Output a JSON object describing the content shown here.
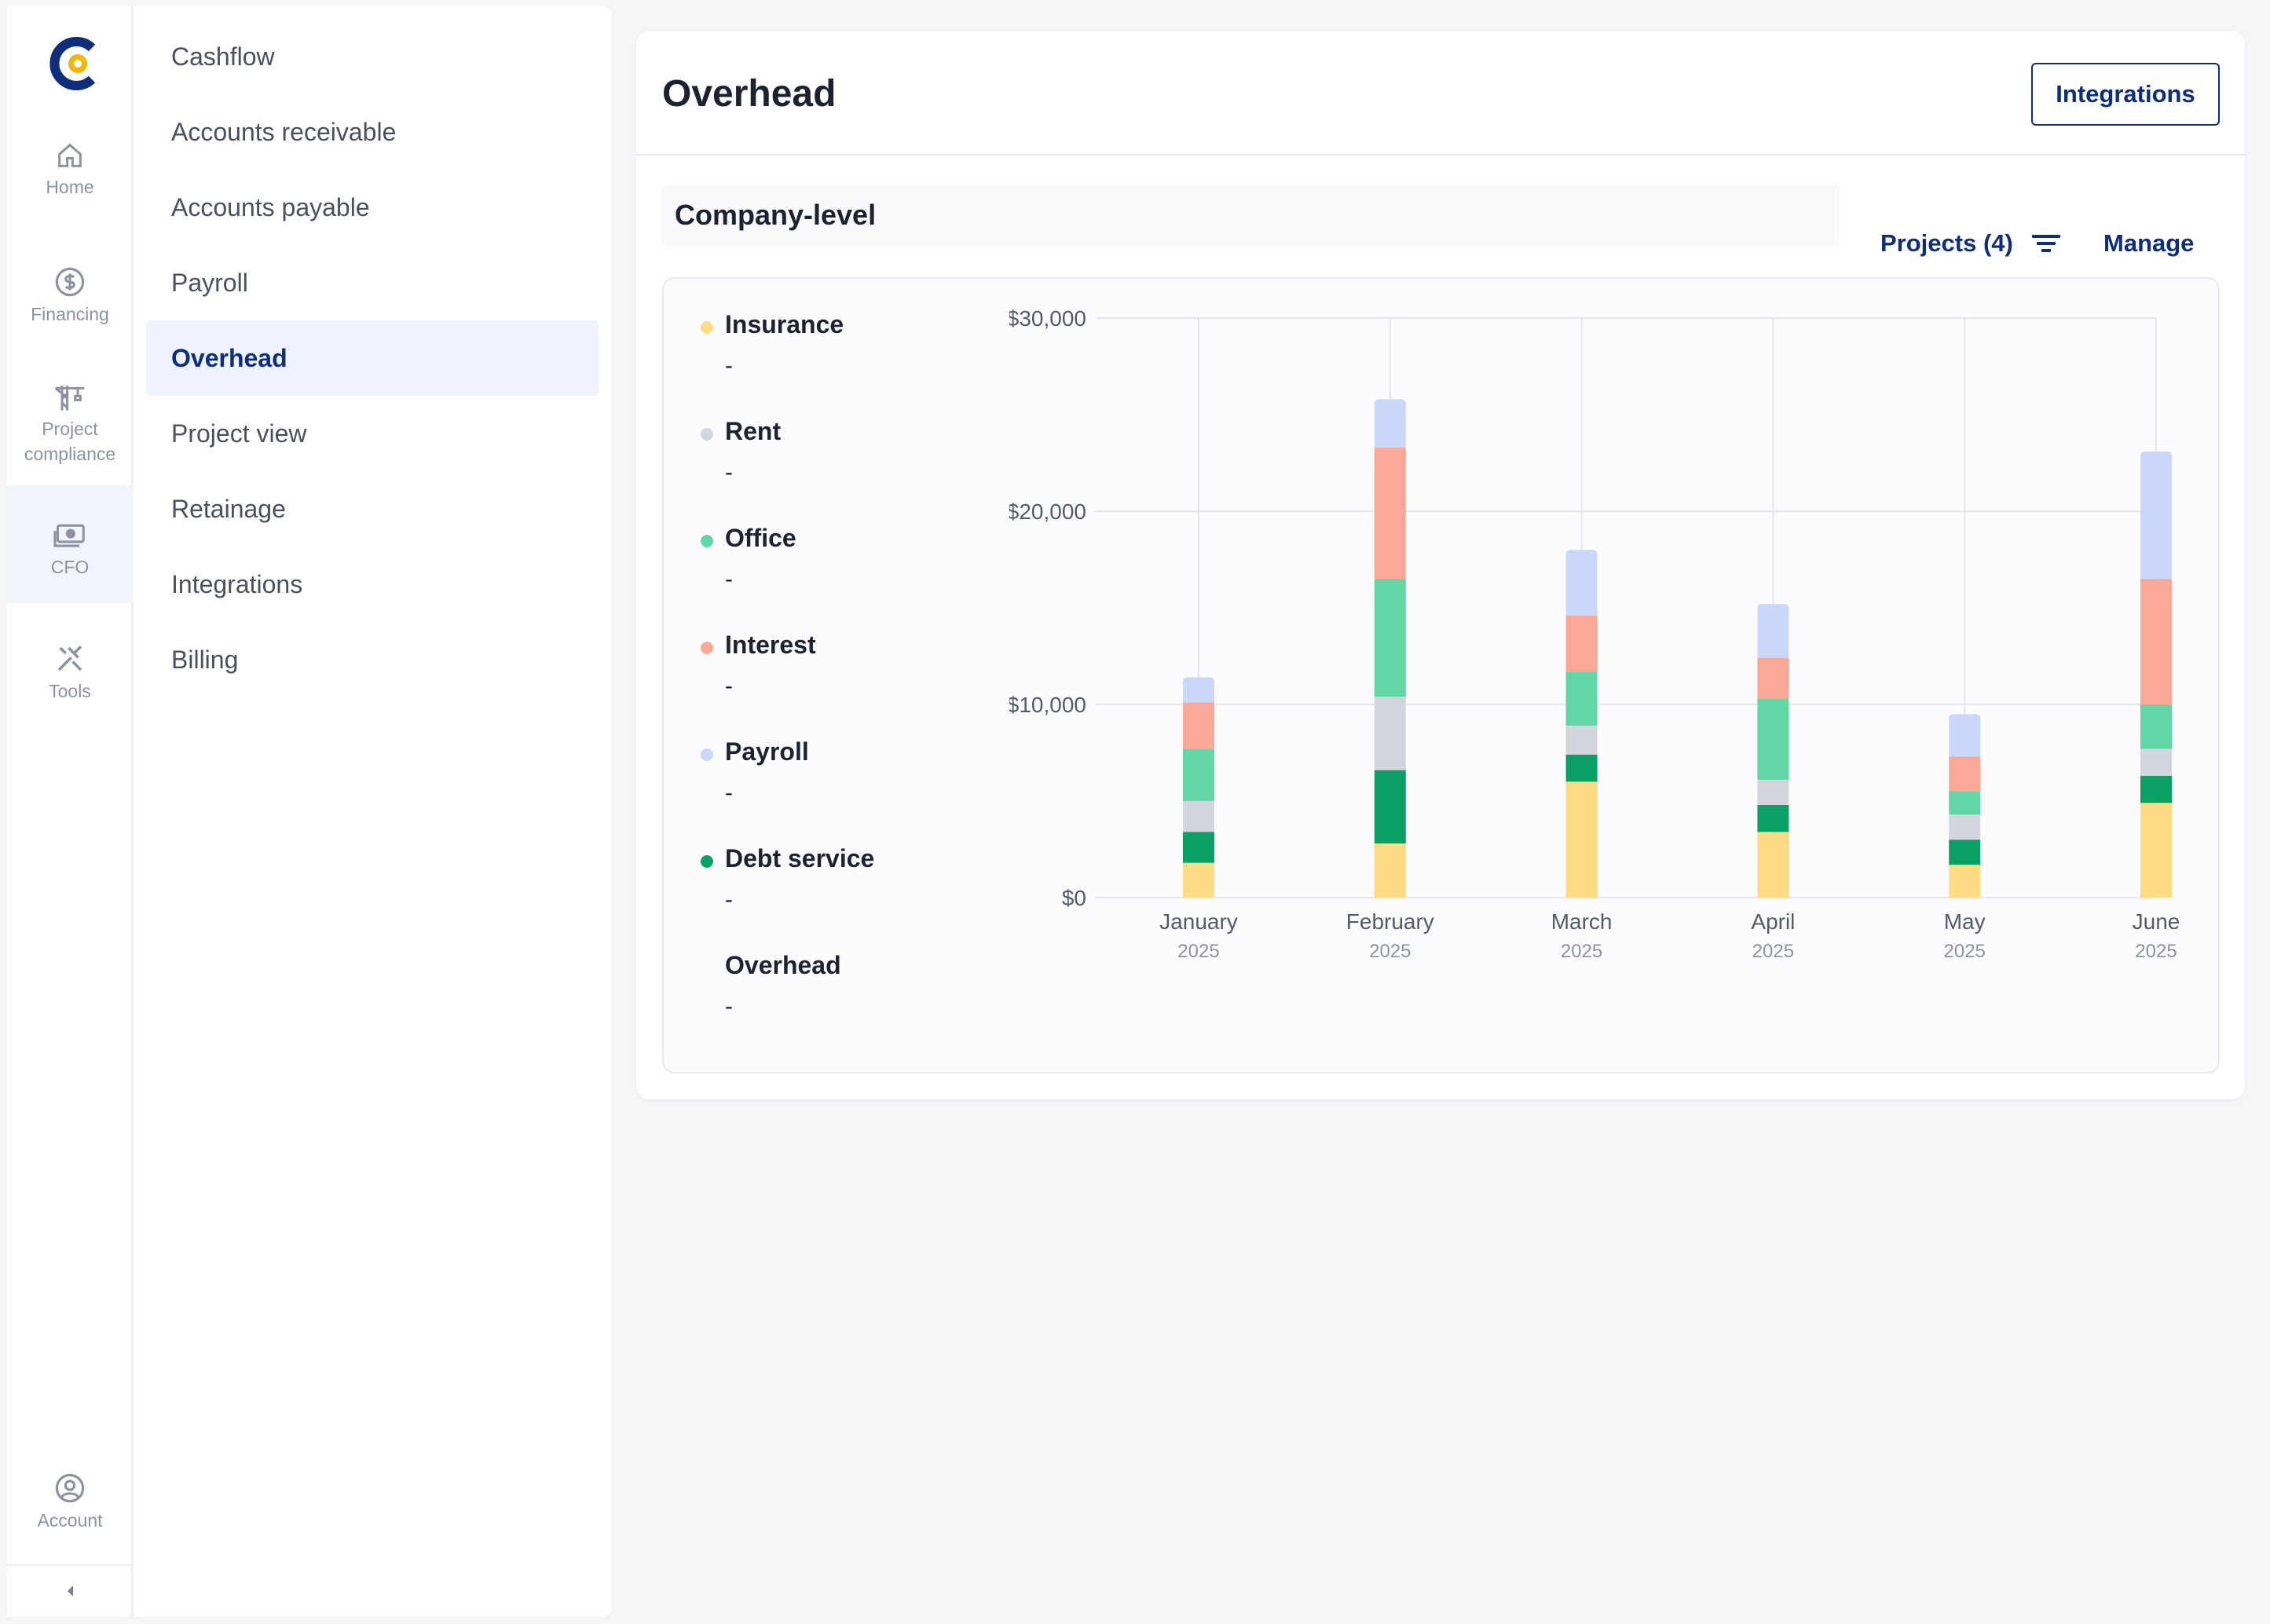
{
  "rail": {
    "items": [
      {
        "label": "Home",
        "icon": "home-icon"
      },
      {
        "label": "Financing",
        "icon": "dollar-icon"
      },
      {
        "label": "Project\ncompliance",
        "icon": "crane-icon"
      },
      {
        "label": "CFO",
        "icon": "cash-icon"
      },
      {
        "label": "Tools",
        "icon": "tools-icon"
      },
      {
        "label": "Account",
        "icon": "user-icon"
      }
    ],
    "active": "CFO",
    "brand_colors": {
      "navy": "#0e2d7a",
      "yellow": "#f2b705"
    }
  },
  "subnav": {
    "items": [
      "Cashflow",
      "Accounts receivable",
      "Accounts payable",
      "Payroll",
      "Overhead",
      "Project view",
      "Retainage",
      "Integrations",
      "Billing"
    ],
    "active": "Overhead"
  },
  "header": {
    "title": "Overhead",
    "integrations_button": "Integrations"
  },
  "toolbar": {
    "scope_label": "Company-level",
    "projects_filter": "Projects (4)",
    "manage": "Manage"
  },
  "legend": [
    {
      "label": "Insurance",
      "value": "-",
      "color": "#fddc85"
    },
    {
      "label": "Rent",
      "value": "-",
      "color": "#d3d6dd"
    },
    {
      "label": "Office",
      "value": "-",
      "color": "#62d7a5"
    },
    {
      "label": "Interest",
      "value": "-",
      "color": "#fba899"
    },
    {
      "label": "Payroll",
      "value": "-",
      "color": "#c9d8fb"
    },
    {
      "label": "Debt service",
      "value": "-",
      "color": "#0aa064"
    },
    {
      "label": "Overhead",
      "value": "-",
      "color": ""
    }
  ],
  "chart_data": {
    "type": "bar",
    "stacked": true,
    "categories": [
      "January",
      "February",
      "March",
      "April",
      "May",
      "June"
    ],
    "category_sublabels": [
      "2025",
      "2025",
      "2025",
      "2025",
      "2025",
      "2025"
    ],
    "y_ticks": [
      "$0",
      "$10,000",
      "$20,000",
      "$30,000"
    ],
    "ylim": [
      0,
      30000
    ],
    "grid": true,
    "series": [
      {
        "name": "Insurance",
        "color": "#fddc85",
        "values": [
          1800,
          2800,
          6000,
          3400,
          1700,
          4900
        ]
      },
      {
        "name": "Debt service",
        "color": "#0aa064",
        "values": [
          1600,
          3800,
          1400,
          1400,
          1300,
          1400
        ]
      },
      {
        "name": "Rent",
        "color": "#d3d6dd",
        "values": [
          1600,
          3800,
          1500,
          1300,
          1300,
          1400
        ]
      },
      {
        "name": "Office",
        "color": "#62d7a5",
        "values": [
          2700,
          6100,
          2800,
          4200,
          1200,
          2300
        ]
      },
      {
        "name": "Interest",
        "color": "#fba899",
        "values": [
          2400,
          6800,
          2900,
          2100,
          1800,
          6500
        ]
      },
      {
        "name": "Payroll",
        "color": "#c9d8fb",
        "values": [
          1300,
          2500,
          3400,
          2800,
          2200,
          6600
        ]
      }
    ]
  }
}
